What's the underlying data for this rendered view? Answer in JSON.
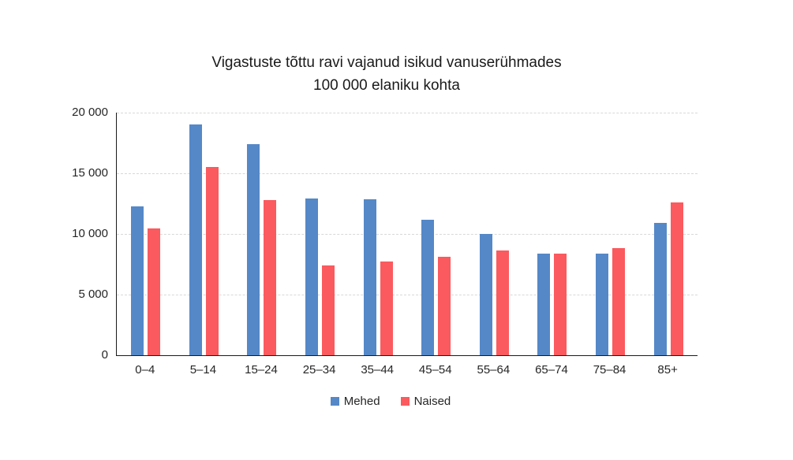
{
  "title": {
    "line1": "Vigastuste tõttu ravi vajanud isikud vanuserühmades",
    "line2": "100 000 elaniku kohta"
  },
  "chart_data": {
    "type": "bar",
    "title": "Vigastuste tõttu ravi vajanud isikud vanuserühmades 100 000 elaniku kohta",
    "categories": [
      "0–4",
      "5–14",
      "15–24",
      "25–34",
      "35–44",
      "45–54",
      "55–64",
      "65–74",
      "75–84",
      "85+"
    ],
    "series": [
      {
        "name": "Mehed",
        "color": "#5588C7",
        "values": [
          12300,
          19000,
          17400,
          12900,
          12850,
          11200,
          10000,
          8400,
          8350,
          10900
        ]
      },
      {
        "name": "Naised",
        "color": "#FB5A5E",
        "values": [
          10450,
          15550,
          12800,
          7400,
          7750,
          8100,
          8650,
          8350,
          8850,
          12600
        ]
      }
    ],
    "xlabel": "",
    "ylabel": "",
    "ylim": [
      0,
      20000
    ],
    "yticks": [
      0,
      5000,
      10000,
      15000,
      20000
    ],
    "ytick_labels": [
      "0",
      "5 000",
      "10 000",
      "15 000",
      "20 000"
    ],
    "grid": "horizontal-dashed",
    "gridline_color": "#d8d8d8",
    "legend_position": "bottom"
  }
}
